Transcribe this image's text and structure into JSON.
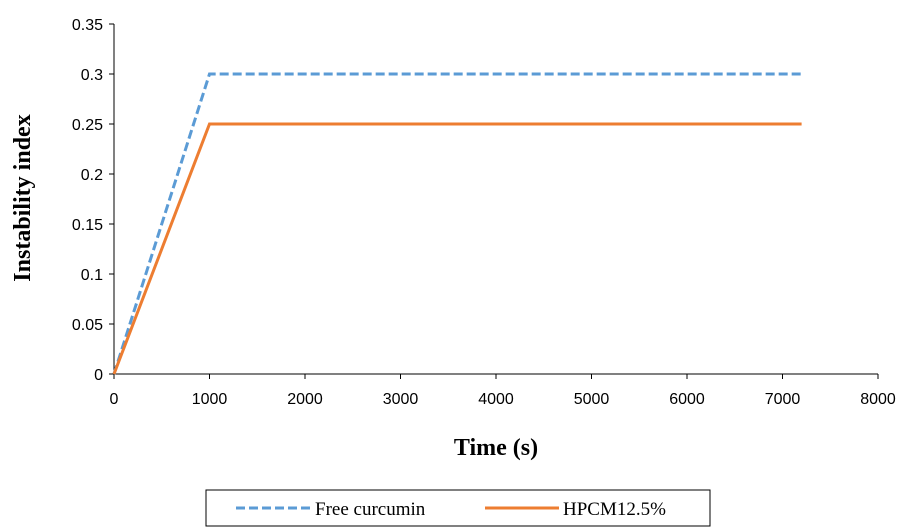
{
  "chart_data": {
    "type": "line",
    "xlabel": "Time (s)",
    "ylabel": "Instability index",
    "xlim": [
      0,
      8000
    ],
    "ylim": [
      0,
      0.35
    ],
    "x_ticks": [
      "0",
      "1000",
      "2000",
      "3000",
      "4000",
      "5000",
      "6000",
      "7000",
      "8000"
    ],
    "y_ticks": [
      "0",
      "0.05",
      "0.1",
      "0.15",
      "0.2",
      "0.25",
      "0.3",
      "0.35"
    ],
    "grid": false,
    "legend_position": "bottom",
    "series": [
      {
        "name": "Free curcumin",
        "color": "#5B9BD5",
        "style": "dashed",
        "x": [
          0,
          1000,
          7200
        ],
        "y": [
          0,
          0.3,
          0.3
        ]
      },
      {
        "name": "HPCM12.5%",
        "color": "#ED7D31",
        "style": "solid",
        "x": [
          0,
          1000,
          7200
        ],
        "y": [
          0,
          0.25,
          0.25
        ]
      }
    ]
  }
}
